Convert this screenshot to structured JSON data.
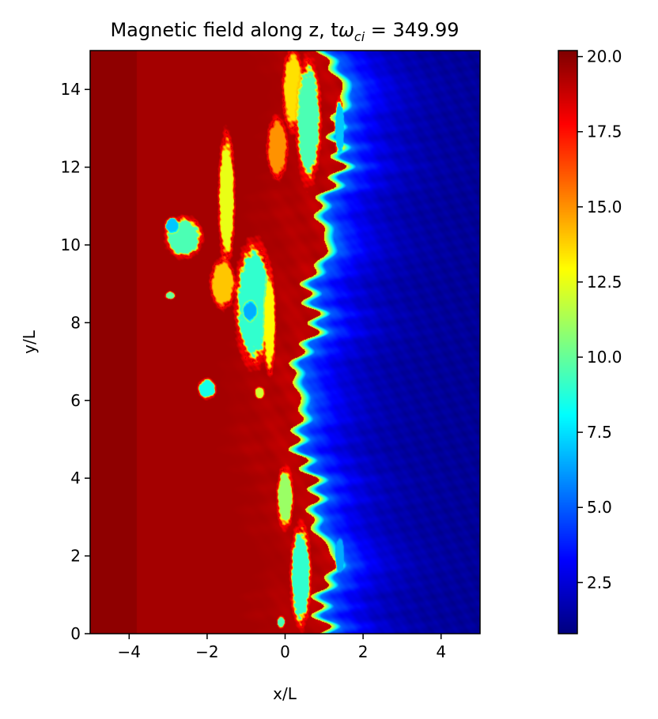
{
  "chart_data": {
    "type": "heatmap",
    "title": {
      "prefix": "Magnetic field along z, t",
      "omega": "ω",
      "subscript": "ci",
      "suffix": " = 349.99"
    },
    "xlabel": "x/L",
    "ylabel": "y/L",
    "xlim": [
      -5,
      5
    ],
    "ylim": [
      0,
      15
    ],
    "xticks": [
      -4,
      -2,
      0,
      2,
      4
    ],
    "yticks": [
      0,
      2,
      4,
      6,
      8,
      10,
      12,
      14
    ],
    "colormap": "jet",
    "colorbar": {
      "vmin": 0.8,
      "vmax": 20.2,
      "ticks": [
        2.5,
        5.0,
        7.5,
        10.0,
        12.5,
        15.0,
        17.5,
        20.0
      ],
      "tick_labels": [
        "2.5",
        "5.0",
        "7.5",
        "10.0",
        "12.5",
        "15.0",
        "17.5",
        "20.0"
      ]
    },
    "field": {
      "high_value": 19.5,
      "low_value": 1.2,
      "front_x_at_y": [
        {
          "y": 0,
          "x": 1.0
        },
        {
          "y": 1,
          "x": 1.1
        },
        {
          "y": 2,
          "x": 1.2
        },
        {
          "y": 3,
          "x": 0.9
        },
        {
          "y": 4,
          "x": 0.6
        },
        {
          "y": 5,
          "x": 0.5
        },
        {
          "y": 6,
          "x": 0.3
        },
        {
          "y": 7,
          "x": 0.5
        },
        {
          "y": 8,
          "x": 0.7
        },
        {
          "y": 9,
          "x": 0.8
        },
        {
          "y": 10,
          "x": 1.0
        },
        {
          "y": 11,
          "x": 1.1
        },
        {
          "y": 12,
          "x": 1.3
        },
        {
          "y": 13,
          "x": 1.5
        },
        {
          "y": 14,
          "x": 1.4
        },
        {
          "y": 15,
          "x": 1.2
        }
      ],
      "structures": [
        {
          "x": -0.8,
          "y": 8.5,
          "w": 0.9,
          "h": 3.0,
          "v": 9.0
        },
        {
          "x": -0.9,
          "y": 8.3,
          "w": 0.35,
          "h": 0.5,
          "v": 6.5
        },
        {
          "x": -2.6,
          "y": 10.2,
          "w": 0.9,
          "h": 1.0,
          "v": 9.5
        },
        {
          "x": -2.9,
          "y": 10.5,
          "w": 0.35,
          "h": 0.4,
          "v": 7.0
        },
        {
          "x": -1.5,
          "y": 11.2,
          "w": 0.4,
          "h": 3.2,
          "v": 12.5
        },
        {
          "x": -2.0,
          "y": 6.3,
          "w": 0.45,
          "h": 0.5,
          "v": 8.5
        },
        {
          "x": -2.95,
          "y": 8.7,
          "w": 0.25,
          "h": 0.2,
          "v": 10.0
        },
        {
          "x": -0.65,
          "y": 6.2,
          "w": 0.25,
          "h": 0.3,
          "v": 12.0
        },
        {
          "x": 0.2,
          "y": 14.0,
          "w": 0.5,
          "h": 2.0,
          "v": 13.5
        },
        {
          "x": 0.6,
          "y": 13.2,
          "w": 0.6,
          "h": 3.0,
          "v": 9.5
        },
        {
          "x": 0.4,
          "y": 1.5,
          "w": 0.5,
          "h": 2.5,
          "v": 9.0
        },
        {
          "x": 0.0,
          "y": 3.5,
          "w": 0.4,
          "h": 1.5,
          "v": 11.0
        },
        {
          "x": -0.4,
          "y": 8.0,
          "w": 0.3,
          "h": 2.5,
          "v": 13.0
        },
        {
          "x": -1.6,
          "y": 9.0,
          "w": 0.6,
          "h": 1.2,
          "v": 14.0
        },
        {
          "x": -0.2,
          "y": 12.5,
          "w": 0.5,
          "h": 1.5,
          "v": 15.0
        },
        {
          "x": -0.1,
          "y": 0.3,
          "w": 0.2,
          "h": 0.3,
          "v": 9.5
        },
        {
          "x": 1.4,
          "y": 13.0,
          "w": 0.25,
          "h": 1.5,
          "v": 7.0
        },
        {
          "x": 1.4,
          "y": 2.0,
          "w": 0.25,
          "h": 1.0,
          "v": 6.5
        }
      ]
    }
  }
}
